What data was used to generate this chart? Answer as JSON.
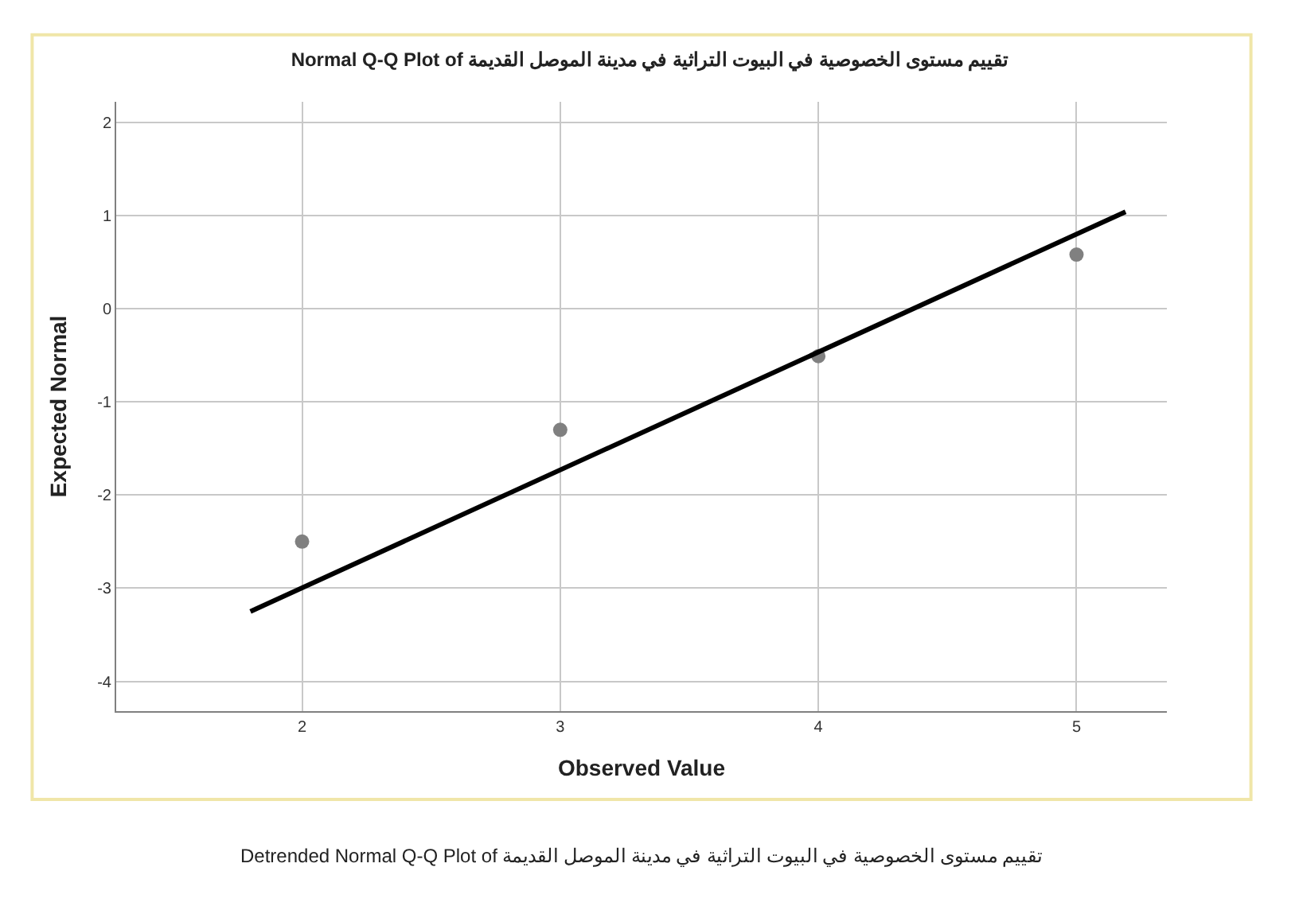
{
  "chart_data": {
    "type": "scatter",
    "title": "Normal Q-Q Plot of تقييم مستوى الخصوصية في البيوت التراثية في مدينة الموصل القديمة",
    "xlabel": "Observed Value",
    "ylabel": "Expected Normal",
    "x": [
      2,
      3,
      4,
      5
    ],
    "series": [
      {
        "color": "#808080",
        "values": [
          -2.5,
          -1.3,
          -0.51,
          0.58
        ]
      },
      {
        "type": "line",
        "marker": "none",
        "color": "#000000",
        "x": [
          1.8,
          5.19
        ],
        "values": [
          -3.25,
          1.04
        ]
      }
    ],
    "xlim": [
      1.28,
      5.35
    ],
    "ylim": [
      -4.32,
      2.22
    ],
    "xticks": [
      2,
      3,
      4,
      5
    ],
    "yticks": [
      -4,
      -3,
      -2,
      -1,
      0,
      1,
      2
    ],
    "grid": true,
    "marker": "circle",
    "annotations": [
      "Detrended Normal Q-Q Plot of تقييم مستوى الخصوصية في البيوت التراثية في مدينة الموصل القديمة"
    ]
  }
}
